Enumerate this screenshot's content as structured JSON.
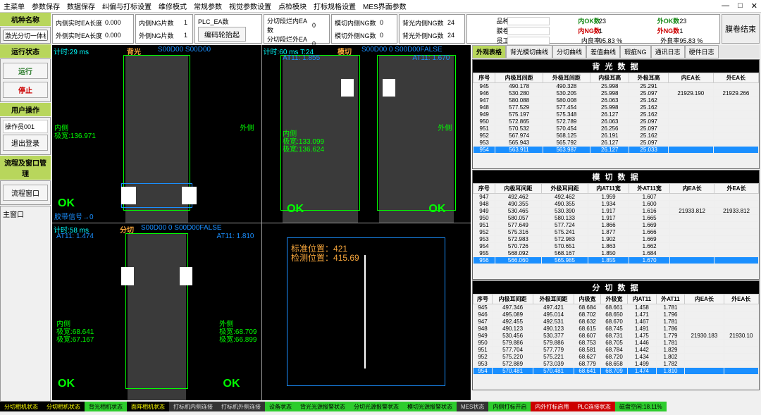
{
  "menu": [
    "主菜单",
    "参数保存",
    "数据保存",
    "纠偏与打标设置",
    "维修模式",
    "常规参数",
    "视觉参数设置",
    "点检模块",
    "打标规格设置",
    "MES界面参数"
  ],
  "window_controls": [
    "—",
    "□",
    "✕"
  ],
  "sidebar": {
    "machine_type_label": "机种名称",
    "machine_type_value": "激光分切一体机项",
    "run_status_label": "运行状态",
    "btn_run": "运行",
    "btn_stop": "停止",
    "user_label": "用户操作",
    "user_value": "操作员001",
    "btn_logout": "退出登录",
    "process_label": "流程及窗口管理",
    "btn_window": "流程窗口",
    "note_label": "主窗口"
  },
  "top_stats": {
    "inner_ea_len_lbl": "内侧实时EA长度",
    "inner_ea_len": "0.000",
    "outer_ea_len_lbl": "外侧实时EA长度",
    "outer_ea_len": "0.000",
    "inner_ng_lbl": "内侧NG片数",
    "inner_ng": "1",
    "outer_ng_lbl": "外侧NG片数",
    "outer_ng": "1",
    "plc_ea_lbl": "PLC_EA数",
    "plc_ea": "",
    "encoder_btn": "编码轮抬起",
    "cut_inner_lbl": "分切段烂内EA数",
    "cut_inner": "0",
    "cut_outer_lbl": "分切段烂外EA数",
    "cut_outer": "0",
    "diecut_inner_ng_lbl": "模切内侧NG数",
    "diecut_inner_ng": "0",
    "diecut_outer_ng_lbl": "模切外侧NG数",
    "diecut_outer_ng": "0",
    "bl_inner_ng_lbl": "背光内侧NG数",
    "bl_inner_ng": "24",
    "bl_outer_ng_lbl": "背光外侧NG数",
    "bl_outer_ng": "24"
  },
  "right_stats": {
    "variety_lbl": "品种号",
    "variety": "",
    "roll_lbl": "膜卷号",
    "roll": "",
    "emp_lbl": "员工号",
    "emp": "",
    "inner_ok_lbl": "内OK数",
    "inner_ok": "23",
    "inner_ok2": "外OK数",
    "inner_ok2v": "23",
    "inner_ng_lbl": "内NG数",
    "inner_ng": "1",
    "inner_ng2": "外NG数",
    "inner_ng2v": "1",
    "inner_rate_lbl": "内良率",
    "inner_rate": "95.83",
    "outer_rate_lbl": "外良率",
    "outer_rate": "95.83",
    "pct": "%",
    "end_btn": "膜卷结束"
  },
  "tabs": [
    "外观表格",
    "背光模切曲线",
    "分切曲线",
    "差值曲线",
    "瑕疵NG",
    "通讯日志",
    "硬件日志"
  ],
  "cams": [
    {
      "time": "计时:29 ms",
      "name": "背光",
      "code": "S00D00     S00D00",
      "inner_lbl": "内侧",
      "inner_w": "极宽:136.971",
      "outer_lbl": "外侧",
      "ok": "OK",
      "bottom": "胶带信号→0"
    },
    {
      "time": "计时:60 ms  T:24",
      "name": "模切",
      "code": "S00D00  0  S00D00FALSE",
      "at1": "AT11: 1.855",
      "at2": "AT11: 1.670",
      "inner_lbl": "内侧",
      "inner_w1": "极宽:133.099",
      "inner_w2": "极宽:136.624",
      "outer_lbl": "外侧",
      "ok1": "OK",
      "ok2": "OK"
    },
    {
      "time": "计时:58 ms",
      "name": "分切",
      "code": "S00D00  0 S00D00FALSE",
      "at1": "AT11: 1.474",
      "at2": "AT11: 1.810",
      "inner_lbl": "内侧",
      "inner_w1": "极宽:68.641",
      "inner_w2": "极宽:67.167",
      "outer_lbl": "外侧",
      "outer_w1": "极宽:68.709",
      "outer_w2": "极宽:66.899",
      "ok1": "OK",
      "ok2": "OK"
    },
    {
      "std_pos_lbl": "标准位置：",
      "std_pos": "421",
      "det_pos_lbl": "检测位置：",
      "det_pos": "415.69"
    }
  ],
  "tables": {
    "t1": {
      "title": "背 光 数 据",
      "cols": [
        "序号",
        "内极耳间距",
        "外极耳间距",
        "内极耳高",
        "外极耳高",
        "内EA长",
        "外EA长"
      ],
      "rows": [
        [
          "945",
          "490.178",
          "490.328",
          "25.998",
          "25.291",
          "",
          ""
        ],
        [
          "946",
          "530.280",
          "530.205",
          "25.998",
          "25.097",
          "21929.190",
          "21929.266"
        ],
        [
          "947",
          "580.088",
          "580.008",
          "26.063",
          "25.162",
          "",
          ""
        ],
        [
          "948",
          "577.529",
          "577.454",
          "25.998",
          "25.162",
          "",
          ""
        ],
        [
          "949",
          "575.197",
          "575.348",
          "26.127",
          "25.162",
          "",
          ""
        ],
        [
          "950",
          "572.865",
          "572.789",
          "26.063",
          "25.097",
          "",
          ""
        ],
        [
          "951",
          "570.532",
          "570.454",
          "26.256",
          "25.097",
          "",
          ""
        ],
        [
          "952",
          "567.974",
          "568.125",
          "26.191",
          "25.162",
          "",
          ""
        ],
        [
          "953",
          "565.943",
          "565.792",
          "26.127",
          "25.097",
          "",
          ""
        ],
        [
          "954",
          "563.911",
          "563.987",
          "26.127",
          "25.033",
          "",
          ""
        ]
      ],
      "sel": 9
    },
    "t2": {
      "title": "模 切 数 据",
      "cols": [
        "序号",
        "内极耳间距",
        "外极耳间距",
        "内AT11宽",
        "外AT11宽",
        "内EA长",
        "外EA长"
      ],
      "rows": [
        [
          "947",
          "492.462",
          "492.462",
          "1.959",
          "1.607",
          "",
          ""
        ],
        [
          "948",
          "490.355",
          "490.355",
          "1.934",
          "1.600",
          "",
          ""
        ],
        [
          "949",
          "530.465",
          "530.390",
          "1.917",
          "1.616",
          "21933.812",
          "21933.812"
        ],
        [
          "950",
          "580.057",
          "580.133",
          "1.917",
          "1.665",
          "",
          ""
        ],
        [
          "951",
          "577.649",
          "577.724",
          "1.866",
          "1.669",
          "",
          ""
        ],
        [
          "952",
          "575.316",
          "575.241",
          "1.877",
          "1.666",
          "",
          ""
        ],
        [
          "953",
          "572.983",
          "572.983",
          "1.902",
          "1.669",
          "",
          ""
        ],
        [
          "954",
          "570.726",
          "570.651",
          "1.863",
          "1.662",
          "",
          ""
        ],
        [
          "955",
          "568.092",
          "568.167",
          "1.850",
          "1.684",
          "",
          ""
        ],
        [
          "956",
          "566.060",
          "565.985",
          "1.855",
          "1.670",
          "",
          ""
        ]
      ],
      "sel": 9
    },
    "t3": {
      "title": "分 切 数 据",
      "cols": [
        "序号",
        "内极耳间距",
        "外极耳间距",
        "内极宽",
        "外极宽",
        "内AT11",
        "外AT11",
        "内EA长",
        "外EA长"
      ],
      "rows": [
        [
          "945",
          "497.346",
          "497.421",
          "68.684",
          "68.661",
          "1.458",
          "1.781",
          "",
          ""
        ],
        [
          "946",
          "495.089",
          "495.014",
          "68.702",
          "68.650",
          "1.471",
          "1.796",
          "",
          ""
        ],
        [
          "947",
          "492.455",
          "492.531",
          "68.632",
          "68.670",
          "1.467",
          "1.781",
          "",
          ""
        ],
        [
          "948",
          "490.123",
          "490.123",
          "68.615",
          "68.745",
          "1.491",
          "1.786",
          "",
          ""
        ],
        [
          "949",
          "530.456",
          "530.377",
          "68.607",
          "68.731",
          "1.475",
          "1.779",
          "21930.183",
          "21930.10"
        ],
        [
          "950",
          "579.886",
          "579.886",
          "68.753",
          "68.705",
          "1.446",
          "1.781",
          "",
          ""
        ],
        [
          "951",
          "577.704",
          "577.779",
          "68.581",
          "68.784",
          "1.442",
          "1.829",
          "",
          ""
        ],
        [
          "952",
          "575.220",
          "575.221",
          "68.627",
          "68.720",
          "1.434",
          "1.802",
          "",
          ""
        ],
        [
          "953",
          "572.889",
          "573.039",
          "68.779",
          "68.658",
          "1.499",
          "1.782",
          "",
          ""
        ],
        [
          "954",
          "570.481",
          "570.481",
          "68.641",
          "68.709",
          "1.474",
          "1.810",
          "",
          ""
        ]
      ],
      "sel": 9
    }
  },
  "statusbar": [
    {
      "cls": "sb-y",
      "txt": "分切相机状态"
    },
    {
      "cls": "sb-y",
      "txt": "分切相机状态"
    },
    {
      "cls": "sb-green",
      "txt": "背光相机状态"
    },
    {
      "cls": "sb-y",
      "txt": "面阵相机状态"
    },
    {
      "cls": "sb-dark",
      "txt": "打标机内侧连接"
    },
    {
      "cls": "sb-dark",
      "txt": "打标机外侧连接"
    },
    {
      "cls": "sb-green",
      "txt": "设备状态"
    },
    {
      "cls": "sb-green",
      "txt": "背光光源报警状态"
    },
    {
      "cls": "sb-green",
      "txt": "分切光源报警状态"
    },
    {
      "cls": "sb-green",
      "txt": "模切光源报警状态"
    },
    {
      "cls": "sb-dark",
      "txt": "MES状态"
    },
    {
      "cls": "sb-green",
      "txt": "内侧打标开启"
    },
    {
      "cls": "sb-red",
      "txt": "内外打标启用"
    },
    {
      "cls": "sb-red",
      "txt": "PLC连接状态"
    },
    {
      "cls": "sb-green",
      "txt": "磁盘空闲:18.11%"
    }
  ]
}
